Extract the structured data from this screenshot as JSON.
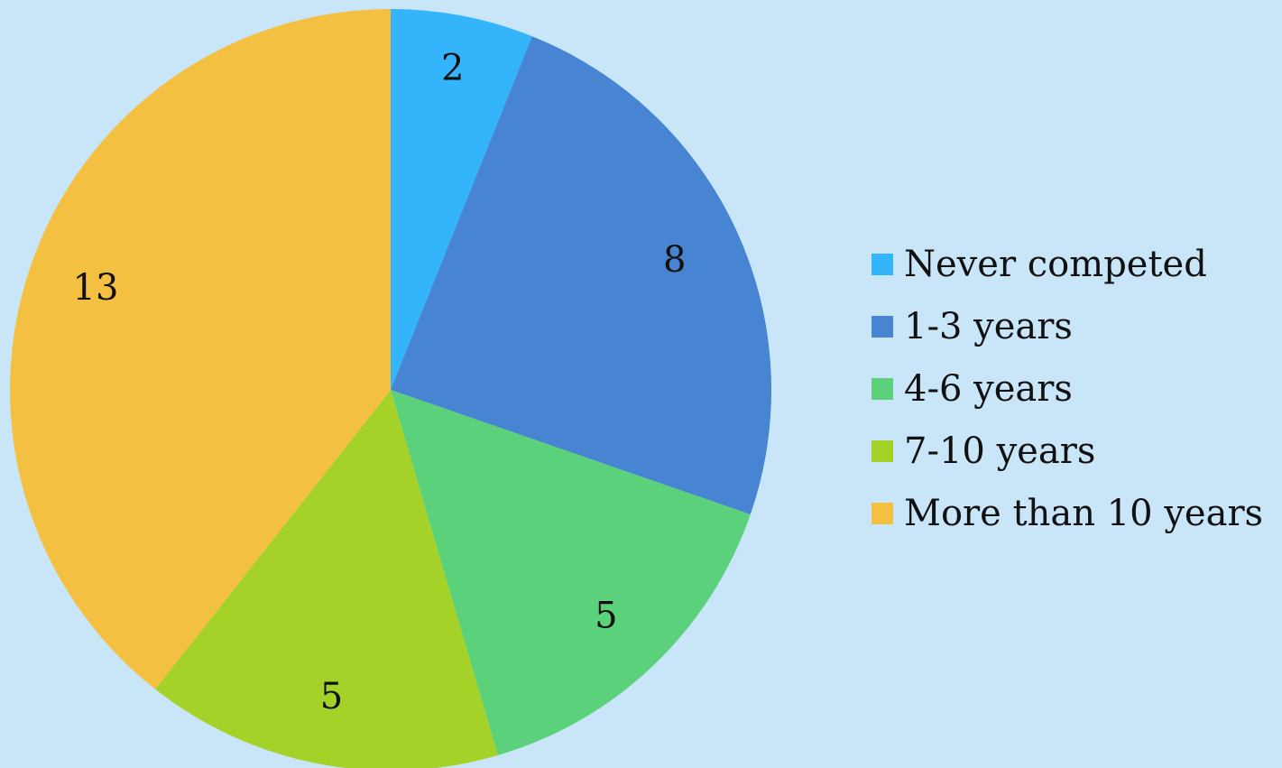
{
  "chart_data": {
    "type": "pie",
    "categories": [
      "Never competed",
      "1-3 years",
      "4-6 years",
      "7-10 years",
      "More than 10 years"
    ],
    "values": [
      2,
      8,
      5,
      5,
      13
    ],
    "colors": [
      "#34b4fb",
      "#4785d3",
      "#5ad17a",
      "#a5d229",
      "#f4c041"
    ],
    "start_angle": "12 o'clock",
    "direction": "clockwise",
    "legend": "right",
    "data_labels": [
      "2",
      "8",
      "5",
      "5",
      "13"
    ]
  }
}
